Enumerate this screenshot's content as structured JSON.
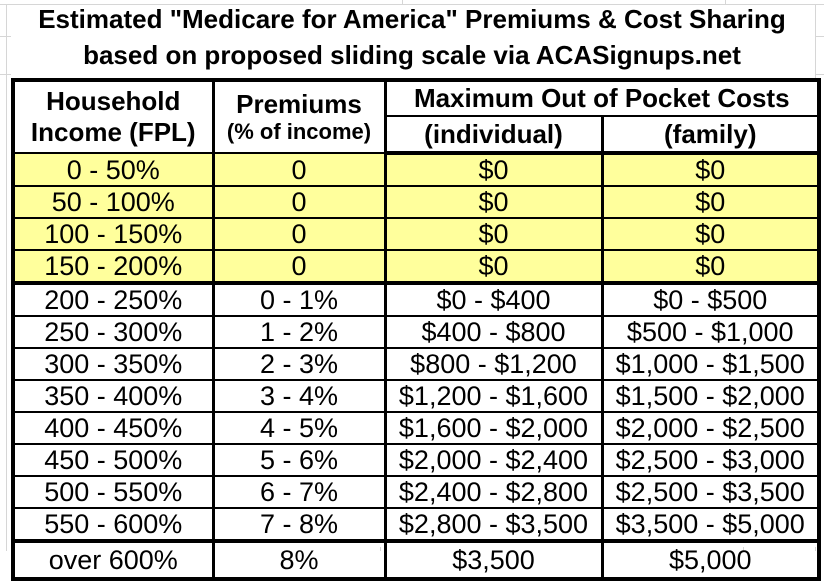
{
  "title": {
    "line1": "Estimated \"Medicare for America\" Premiums & Cost Sharing",
    "line2": "based on proposed sliding scale via ACASignups.net"
  },
  "table": {
    "header": {
      "income_line1": "Household",
      "income_line2": "Income (FPL)",
      "premiums_line1": "Premiums",
      "premiums_line2": "(% of income)",
      "oop_group": "Maximum Out of Pocket Costs",
      "oop_individual": "(individual)",
      "oop_family": "(family)"
    },
    "rows": [
      {
        "highlight": true,
        "cells": [
          "0 - 50%",
          "0",
          "$0",
          "$0"
        ]
      },
      {
        "highlight": true,
        "cells": [
          "50 - 100%",
          "0",
          "$0",
          "$0"
        ]
      },
      {
        "highlight": true,
        "cells": [
          "100 - 150%",
          "0",
          "$0",
          "$0"
        ]
      },
      {
        "highlight": true,
        "thick_bottom": true,
        "cells": [
          "150 - 200%",
          "0",
          "$0",
          "$0"
        ]
      },
      {
        "cells": [
          "200 - 250%",
          "0 - 1%",
          "$0 - $400",
          "$0 - $500"
        ]
      },
      {
        "cells": [
          "250 - 300%",
          "1 - 2%",
          "$400 - $800",
          "$500 - $1,000"
        ]
      },
      {
        "cells": [
          "300 - 350%",
          "2 - 3%",
          "$800 - $1,200",
          "$1,000 - $1,500"
        ]
      },
      {
        "cells": [
          "350 - 400%",
          "3 - 4%",
          "$1,200 - $1,600",
          "$1,500 - $2,000"
        ]
      },
      {
        "cells": [
          "400 - 450%",
          "4 - 5%",
          "$1,600 - $2,000",
          "$2,000 - $2,500"
        ]
      },
      {
        "cells": [
          "450 - 500%",
          "5 - 6%",
          "$2,000 - $2,400",
          "$2,500 - $3,000"
        ]
      },
      {
        "cells": [
          "500 - 550%",
          "6 - 7%",
          "$2,400 - $2,800",
          "$2,500 - $3,500"
        ]
      },
      {
        "thick_bottom": true,
        "cells": [
          "550 - 600%",
          "7 - 8%",
          "$2,800 - $3,500",
          "$3,500 - $5,000"
        ]
      },
      {
        "footer": true,
        "cells": [
          "over 600%",
          "8%",
          "$3,500",
          "$5,000"
        ]
      }
    ]
  },
  "colors": {
    "highlight_yellow": "#ffff9c",
    "border_black": "#000000",
    "gridline_gray": "#d6d6d6"
  },
  "chart_data": {
    "type": "table",
    "title": "Estimated \"Medicare for America\" Premiums & Cost Sharing",
    "subtitle": "based on proposed sliding scale via ACASignups.net",
    "columns": [
      "Household Income (FPL)",
      "Premiums (% of income)",
      "Maximum Out of Pocket Costs (individual)",
      "Maximum Out of Pocket Costs (family)"
    ],
    "rows": [
      [
        "0 - 50%",
        "0",
        "$0",
        "$0"
      ],
      [
        "50 - 100%",
        "0",
        "$0",
        "$0"
      ],
      [
        "100 - 150%",
        "0",
        "$0",
        "$0"
      ],
      [
        "150 - 200%",
        "0",
        "$0",
        "$0"
      ],
      [
        "200 - 250%",
        "0 - 1%",
        "$0 - $400",
        "$0 - $500"
      ],
      [
        "250 - 300%",
        "1 - 2%",
        "$400 - $800",
        "$500 - $1,000"
      ],
      [
        "300 - 350%",
        "2 - 3%",
        "$800 - $1,200",
        "$1,000 - $1,500"
      ],
      [
        "350 - 400%",
        "3 - 4%",
        "$1,200 - $1,600",
        "$1,500 - $2,000"
      ],
      [
        "400 - 450%",
        "4 - 5%",
        "$1,600 - $2,000",
        "$2,000 - $2,500"
      ],
      [
        "450 - 500%",
        "5 - 6%",
        "$2,000 - $2,400",
        "$2,500 - $3,000"
      ],
      [
        "500 - 550%",
        "6 - 7%",
        "$2,400 - $2,800",
        "$2,500 - $3,500"
      ],
      [
        "550 - 600%",
        "7 - 8%",
        "$2,800 - $3,500",
        "$3,500 - $5,000"
      ],
      [
        "over 600%",
        "8%",
        "$3,500",
        "$5,000"
      ]
    ],
    "highlighted_rows": [
      0,
      1,
      2,
      3
    ],
    "layout": {
      "grid": "heavy black cell borders",
      "highlight": "pale yellow rows for 0-200% FPL"
    }
  }
}
